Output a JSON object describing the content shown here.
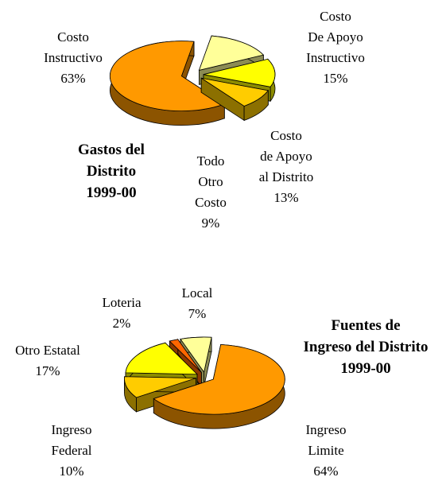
{
  "chart_data": [
    {
      "type": "pie",
      "title": "Gastos del\nDistrito\n1999-00",
      "categories": [
        "Costo\nDe Apoyo\nInstructivo",
        "Costo\nde Apoyo\nal Distrito",
        "Todo\nOtro\nCosto",
        "Costo\nInstructivo"
      ],
      "values": [
        15,
        13,
        9,
        63
      ],
      "value_labels": [
        "15%",
        "13%",
        "9%",
        "63%"
      ],
      "colors": [
        "#FFFF99",
        "#FFFF00",
        "#FFCC00",
        "#FF9900"
      ]
    },
    {
      "type": "pie",
      "title": "Fuentes de\nIngreso del Distrito\n1999-00",
      "categories": [
        "Ingreso\nLimite",
        "Ingreso\nFederal",
        "Otro Estatal",
        "Loteria",
        "Local"
      ],
      "values": [
        64,
        10,
        17,
        2,
        7
      ],
      "value_labels": [
        "64%",
        "10%",
        "17%",
        "2%",
        "7%"
      ],
      "colors": [
        "#FF9900",
        "#FFCC00",
        "#FFFF00",
        "#FF6600",
        "#FFFF99"
      ]
    }
  ]
}
